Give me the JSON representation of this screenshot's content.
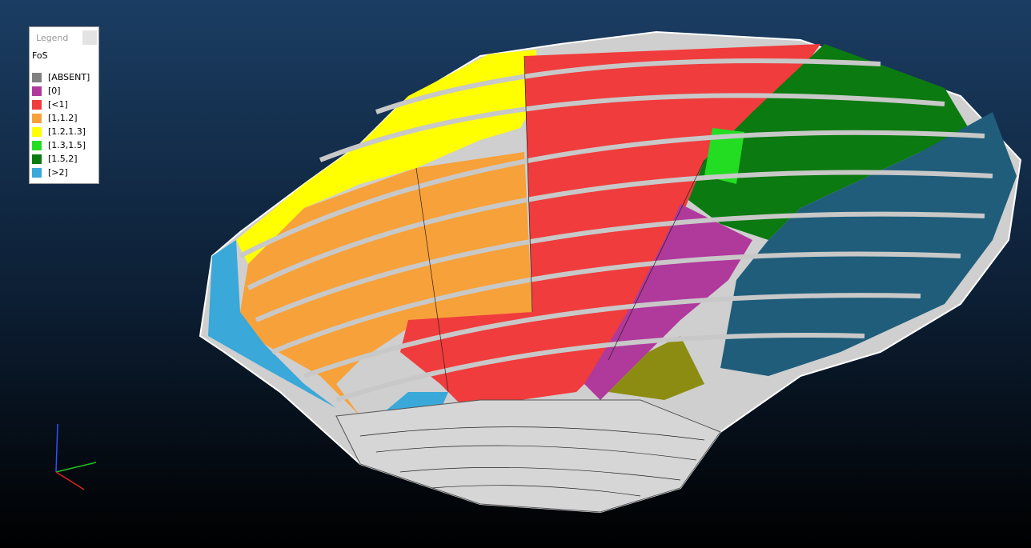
{
  "legend": {
    "title": "Legend",
    "variable": "FoS",
    "items": [
      {
        "label": "[ABSENT]",
        "color": "#808080"
      },
      {
        "label": "[0]",
        "color": "#b0399c"
      },
      {
        "label": "[<1]",
        "color": "#f03c3c"
      },
      {
        "label": "[1,1.2]",
        "color": "#f7a13a"
      },
      {
        "label": "[1.2,1.3]",
        "color": "#ffff00"
      },
      {
        "label": "[1.3,1.5]",
        "color": "#22dd22"
      },
      {
        "label": "[1.5,2]",
        "color": "#0b7a10"
      },
      {
        "label": "[>2]",
        "color": "#3aa8d8"
      }
    ]
  }
}
